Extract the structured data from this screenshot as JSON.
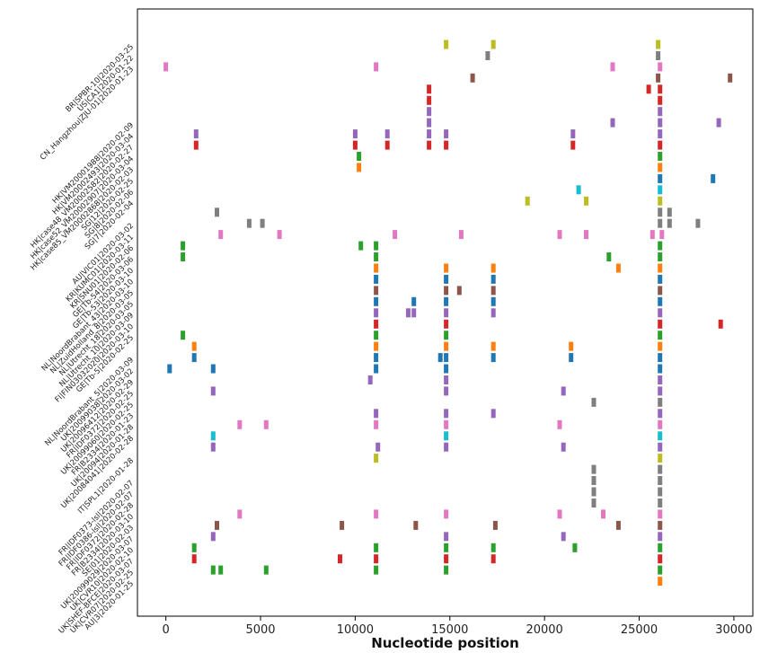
{
  "chart_data": {
    "type": "scatter",
    "title": "",
    "xlabel": "Nucleotide position",
    "ylabel": "",
    "xlim": [
      -1500,
      31000
    ],
    "x_ticks": [
      0,
      5000,
      10000,
      15000,
      20000,
      25000,
      30000
    ],
    "x_tick_labels": [
      "0",
      "5000",
      "10000",
      "15000",
      "20000",
      "25000",
      "30000"
    ],
    "grid": false,
    "legend": "none",
    "colors": {
      "yellow": "#bcbd22",
      "gray": "#7f7f7f",
      "pink": "#e377c2",
      "brown": "#8c564b",
      "red": "#d62728",
      "purple": "#9467bd",
      "green": "#2ca02c",
      "orange": "#ff7f0e",
      "blue": "#1f77b4",
      "cyan": "#17becf"
    },
    "sequence_labels": [
      "BR|SPBR-10|2020-03-25",
      "US|CA1|2020-01-22",
      "CN_Hangzhou|ZJU-01|2020-01-23",
      "",
      "",
      "",
      "",
      "HK|VM20001988|2020-02-09",
      "HK|VM20002493|2020-03-04",
      "HK|case48_VM20002582|2020-02-27",
      "HK|case52_VM20002907|2020-03-04",
      "HK|case85_VM20002868|2020-02-03",
      "SG|12|2020-02-25",
      "SG|8|2020-02-06",
      "SG|7|2020-02-04",
      "",
      "AU|VIC01|2020-03-02",
      "KR|KUMC01|2020-03-11",
      "KR|SNU01|2020-02-06",
      "GE|Tb-54|2020-03-06",
      "GE|Tb-53|2020-03-10",
      "NL|NoordBrabant_43|2020-03-10",
      "NL|ZuidHolland_8|2020-03-05",
      "NL|Utrecht_18|2020-03-05",
      "NL|Utrecht_10|2020-03-09",
      "FI|FIN03032020|2020-03-10",
      "GE|Tb-5|2020-02-25",
      "",
      "NL|NoordBrabant_5|2020-03-09",
      "UK|20099038|2020-03-02",
      "UK|20096412|2020-02-29",
      "FR|IDF0372|2020-02-25",
      "UK|20099060|2020-02-25",
      "FR|B2334|2020-01-23",
      "UK|20094|2020-01-28",
      "UK|20084041|2020-02-28",
      "",
      "IT|SPL1|2020-01-28",
      "",
      "FR|IDF0373-lsl|2020-02-07",
      "FR|IDF0386-lsl|2020-02-07",
      "FR|IDF0372|2020-02-28",
      "FR|B2334|2020-03-10",
      "SE|01|2020-02-03",
      "UK|20099029|2020-03-07",
      "UK|CVR10|2020-02-10",
      "UK|SHEF-BFCE|2020-03-07",
      "UK|CVR07|2020-02-25",
      "AU|3|2020-01-25"
    ],
    "rows": [
      {
        "points": [
          [
            14800,
            "yellow"
          ],
          [
            17300,
            "yellow"
          ],
          [
            26000,
            "yellow"
          ]
        ]
      },
      {
        "points": [
          [
            17000,
            "gray"
          ],
          [
            26000,
            "gray"
          ]
        ]
      },
      {
        "points": [
          [
            0,
            "pink"
          ],
          [
            11100,
            "pink"
          ],
          [
            23600,
            "pink"
          ],
          [
            26100,
            "pink"
          ]
        ]
      },
      {
        "points": [
          [
            16200,
            "brown"
          ],
          [
            26000,
            "brown"
          ],
          [
            29800,
            "brown"
          ]
        ]
      },
      {
        "points": [
          [
            13900,
            "red"
          ],
          [
            25500,
            "red"
          ],
          [
            26100,
            "red"
          ]
        ]
      },
      {
        "points": [
          [
            13900,
            "red"
          ],
          [
            26100,
            "red"
          ]
        ]
      },
      {
        "points": [
          [
            13900,
            "purple"
          ],
          [
            26100,
            "purple"
          ]
        ]
      },
      {
        "points": [
          [
            13900,
            "purple"
          ],
          [
            23600,
            "purple"
          ],
          [
            26100,
            "purple"
          ],
          [
            29200,
            "purple"
          ]
        ]
      },
      {
        "points": [
          [
            1600,
            "purple"
          ],
          [
            10000,
            "purple"
          ],
          [
            11700,
            "purple"
          ],
          [
            13900,
            "purple"
          ],
          [
            14800,
            "purple"
          ],
          [
            21500,
            "purple"
          ],
          [
            26100,
            "purple"
          ]
        ]
      },
      {
        "points": [
          [
            1600,
            "red"
          ],
          [
            10000,
            "red"
          ],
          [
            11700,
            "red"
          ],
          [
            13900,
            "red"
          ],
          [
            14800,
            "red"
          ],
          [
            21500,
            "red"
          ],
          [
            26100,
            "red"
          ]
        ]
      },
      {
        "points": [
          [
            10200,
            "green"
          ],
          [
            26100,
            "green"
          ]
        ]
      },
      {
        "points": [
          [
            10200,
            "orange"
          ],
          [
            26100,
            "orange"
          ]
        ]
      },
      {
        "points": [
          [
            26100,
            "blue"
          ],
          [
            28900,
            "blue"
          ]
        ]
      },
      {
        "points": [
          [
            21800,
            "cyan"
          ],
          [
            26100,
            "cyan"
          ]
        ]
      },
      {
        "points": [
          [
            19100,
            "yellow"
          ],
          [
            22200,
            "yellow"
          ],
          [
            26100,
            "yellow"
          ]
        ]
      },
      {
        "points": [
          [
            2700,
            "gray"
          ],
          [
            26100,
            "gray"
          ],
          [
            26600,
            "gray"
          ]
        ]
      },
      {
        "points": [
          [
            4400,
            "gray"
          ],
          [
            5100,
            "gray"
          ],
          [
            26100,
            "gray"
          ],
          [
            26600,
            "gray"
          ],
          [
            28100,
            "gray"
          ]
        ]
      },
      {
        "points": [
          [
            2900,
            "pink"
          ],
          [
            6000,
            "pink"
          ],
          [
            12100,
            "pink"
          ],
          [
            15600,
            "pink"
          ],
          [
            20800,
            "pink"
          ],
          [
            22200,
            "pink"
          ],
          [
            25700,
            "pink"
          ],
          [
            26200,
            "pink"
          ]
        ]
      },
      {
        "points": [
          [
            900,
            "green"
          ],
          [
            10300,
            "green"
          ],
          [
            11100,
            "green"
          ],
          [
            26100,
            "green"
          ]
        ]
      },
      {
        "points": [
          [
            900,
            "green"
          ],
          [
            11100,
            "green"
          ],
          [
            23400,
            "green"
          ],
          [
            26100,
            "green"
          ]
        ]
      },
      {
        "points": [
          [
            11100,
            "orange"
          ],
          [
            14800,
            "orange"
          ],
          [
            17300,
            "orange"
          ],
          [
            23900,
            "orange"
          ],
          [
            26100,
            "orange"
          ]
        ]
      },
      {
        "points": [
          [
            11100,
            "blue"
          ],
          [
            14800,
            "blue"
          ],
          [
            17300,
            "blue"
          ],
          [
            26100,
            "blue"
          ]
        ]
      },
      {
        "points": [
          [
            11100,
            "brown"
          ],
          [
            14800,
            "brown"
          ],
          [
            15500,
            "brown"
          ],
          [
            17300,
            "brown"
          ],
          [
            26100,
            "brown"
          ]
        ]
      },
      {
        "points": [
          [
            11100,
            "blue"
          ],
          [
            13100,
            "blue"
          ],
          [
            14800,
            "blue"
          ],
          [
            17300,
            "blue"
          ],
          [
            26100,
            "blue"
          ]
        ]
      },
      {
        "points": [
          [
            11100,
            "purple"
          ],
          [
            12800,
            "purple"
          ],
          [
            13100,
            "purple"
          ],
          [
            14800,
            "purple"
          ],
          [
            17300,
            "purple"
          ],
          [
            26100,
            "purple"
          ]
        ]
      },
      {
        "points": [
          [
            11100,
            "red"
          ],
          [
            14800,
            "red"
          ],
          [
            26100,
            "red"
          ],
          [
            29300,
            "red"
          ]
        ]
      },
      {
        "points": [
          [
            900,
            "green"
          ],
          [
            11100,
            "green"
          ],
          [
            14800,
            "green"
          ],
          [
            26100,
            "green"
          ]
        ]
      },
      {
        "points": [
          [
            1500,
            "orange"
          ],
          [
            11100,
            "orange"
          ],
          [
            14800,
            "orange"
          ],
          [
            17300,
            "orange"
          ],
          [
            21400,
            "orange"
          ],
          [
            26100,
            "orange"
          ]
        ]
      },
      {
        "points": [
          [
            1500,
            "blue"
          ],
          [
            11100,
            "blue"
          ],
          [
            14500,
            "blue"
          ],
          [
            14800,
            "blue"
          ],
          [
            17300,
            "blue"
          ],
          [
            21400,
            "blue"
          ],
          [
            26100,
            "blue"
          ]
        ]
      },
      {
        "points": [
          [
            200,
            "blue"
          ],
          [
            2500,
            "blue"
          ],
          [
            11100,
            "blue"
          ],
          [
            14800,
            "blue"
          ],
          [
            26100,
            "blue"
          ]
        ]
      },
      {
        "points": [
          [
            10800,
            "purple"
          ],
          [
            14800,
            "purple"
          ],
          [
            26100,
            "purple"
          ]
        ]
      },
      {
        "points": [
          [
            2500,
            "purple"
          ],
          [
            14800,
            "purple"
          ],
          [
            21000,
            "purple"
          ],
          [
            26100,
            "purple"
          ]
        ]
      },
      {
        "points": [
          [
            22600,
            "gray"
          ],
          [
            26100,
            "gray"
          ]
        ]
      },
      {
        "points": [
          [
            11100,
            "purple"
          ],
          [
            14800,
            "purple"
          ],
          [
            17300,
            "purple"
          ],
          [
            26100,
            "purple"
          ]
        ]
      },
      {
        "points": [
          [
            3900,
            "pink"
          ],
          [
            5300,
            "pink"
          ],
          [
            11100,
            "pink"
          ],
          [
            14800,
            "pink"
          ],
          [
            20800,
            "pink"
          ],
          [
            26100,
            "pink"
          ]
        ]
      },
      {
        "points": [
          [
            2500,
            "cyan"
          ],
          [
            14800,
            "cyan"
          ],
          [
            26100,
            "cyan"
          ]
        ]
      },
      {
        "points": [
          [
            2500,
            "purple"
          ],
          [
            11200,
            "purple"
          ],
          [
            14800,
            "purple"
          ],
          [
            21000,
            "purple"
          ],
          [
            26100,
            "purple"
          ]
        ]
      },
      {
        "points": [
          [
            11100,
            "yellow"
          ],
          [
            26100,
            "yellow"
          ]
        ]
      },
      {
        "points": [
          [
            22600,
            "gray"
          ],
          [
            26100,
            "gray"
          ]
        ]
      },
      {
        "points": [
          [
            22600,
            "gray"
          ],
          [
            26100,
            "gray"
          ]
        ]
      },
      {
        "points": [
          [
            22600,
            "gray"
          ],
          [
            26100,
            "gray"
          ]
        ]
      },
      {
        "points": [
          [
            22600,
            "gray"
          ],
          [
            26100,
            "gray"
          ]
        ]
      },
      {
        "points": [
          [
            3900,
            "pink"
          ],
          [
            11100,
            "pink"
          ],
          [
            14800,
            "pink"
          ],
          [
            20800,
            "pink"
          ],
          [
            23100,
            "pink"
          ],
          [
            26100,
            "pink"
          ]
        ]
      },
      {
        "points": [
          [
            2700,
            "brown"
          ],
          [
            9300,
            "brown"
          ],
          [
            13200,
            "brown"
          ],
          [
            17400,
            "brown"
          ],
          [
            23900,
            "brown"
          ],
          [
            26100,
            "brown"
          ]
        ]
      },
      {
        "points": [
          [
            2500,
            "purple"
          ],
          [
            14800,
            "purple"
          ],
          [
            21000,
            "purple"
          ],
          [
            26100,
            "purple"
          ]
        ]
      },
      {
        "points": [
          [
            1500,
            "green"
          ],
          [
            11100,
            "green"
          ],
          [
            14800,
            "green"
          ],
          [
            17300,
            "green"
          ],
          [
            21600,
            "green"
          ],
          [
            26100,
            "green"
          ]
        ]
      },
      {
        "points": [
          [
            1500,
            "red"
          ],
          [
            9200,
            "red"
          ],
          [
            11100,
            "red"
          ],
          [
            14800,
            "red"
          ],
          [
            17300,
            "red"
          ],
          [
            26100,
            "red"
          ]
        ]
      },
      {
        "points": [
          [
            2500,
            "green"
          ],
          [
            2900,
            "green"
          ],
          [
            5300,
            "green"
          ],
          [
            11100,
            "green"
          ],
          [
            14800,
            "green"
          ],
          [
            26100,
            "green"
          ]
        ]
      },
      {
        "points": [
          [
            26100,
            "orange"
          ]
        ]
      }
    ]
  }
}
